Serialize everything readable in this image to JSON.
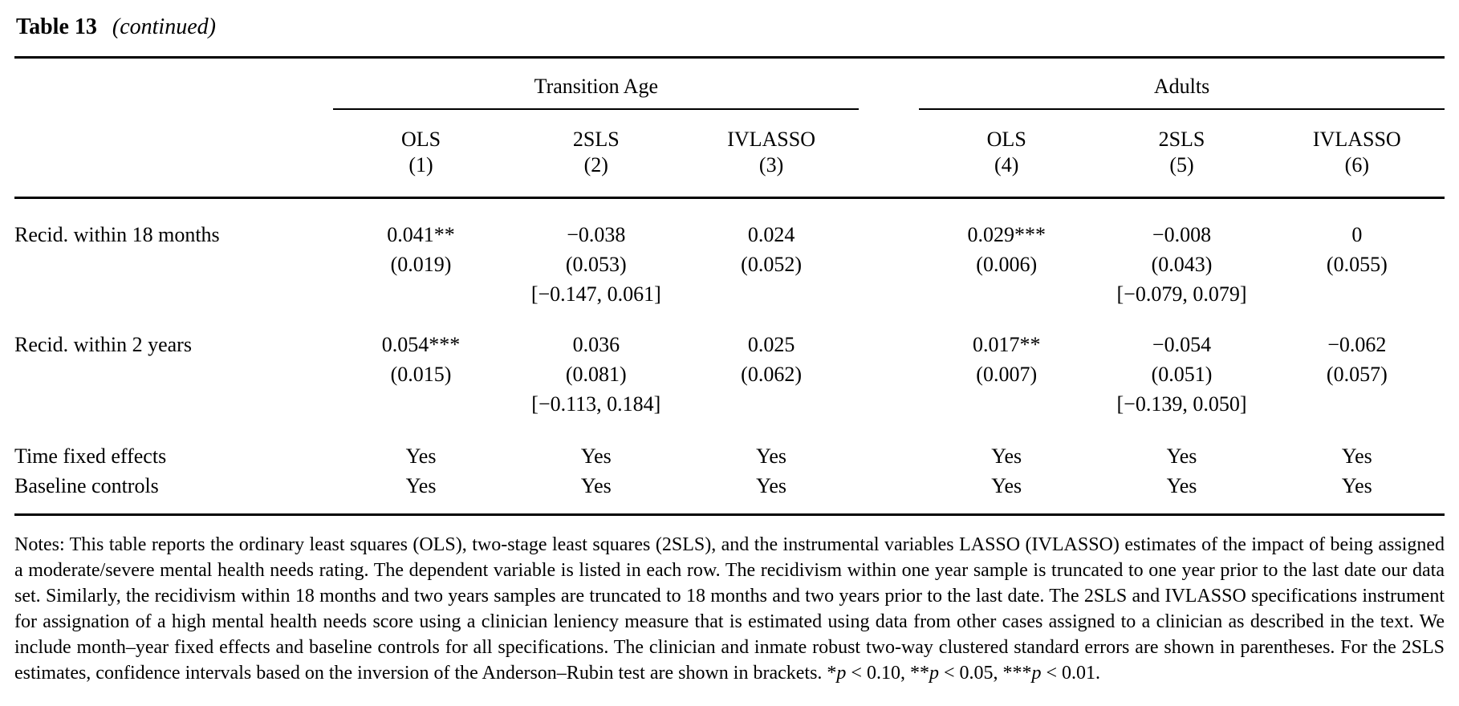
{
  "title": {
    "number": "Table 13",
    "continued": "(continued)"
  },
  "table": {
    "groups": [
      {
        "label": "Transition Age"
      },
      {
        "label": "Adults"
      }
    ],
    "columns": [
      {
        "method": "OLS",
        "number": "(1)"
      },
      {
        "method": "2SLS",
        "number": "(2)"
      },
      {
        "method": "IVLASSO",
        "number": "(3)"
      },
      {
        "method": "OLS",
        "number": "(4)"
      },
      {
        "method": "2SLS",
        "number": "(5)"
      },
      {
        "method": "IVLASSO",
        "number": "(6)"
      }
    ],
    "rows": [
      {
        "label": "Recid. within 18 months",
        "cells": [
          {
            "estimate": "0.041**",
            "se": "(0.019)",
            "ci": ""
          },
          {
            "estimate": "−0.038",
            "se": "(0.053)",
            "ci": "[−0.147, 0.061]"
          },
          {
            "estimate": "0.024",
            "se": "(0.052)",
            "ci": ""
          },
          {
            "estimate": "0.029***",
            "se": "(0.006)",
            "ci": ""
          },
          {
            "estimate": "−0.008",
            "se": "(0.043)",
            "ci": "[−0.079, 0.079]"
          },
          {
            "estimate": "0",
            "se": "(0.055)",
            "ci": ""
          }
        ]
      },
      {
        "label": "Recid. within 2 years",
        "cells": [
          {
            "estimate": "0.054***",
            "se": "(0.015)",
            "ci": ""
          },
          {
            "estimate": "0.036",
            "se": "(0.081)",
            "ci": "[−0.113, 0.184]"
          },
          {
            "estimate": "0.025",
            "se": "(0.062)",
            "ci": ""
          },
          {
            "estimate": "0.017**",
            "se": "(0.007)",
            "ci": ""
          },
          {
            "estimate": "−0.054",
            "se": "(0.051)",
            "ci": "[−0.139, 0.050]"
          },
          {
            "estimate": "−0.062",
            "se": "(0.057)",
            "ci": ""
          }
        ]
      }
    ],
    "spec_rows": [
      {
        "label": "Time fixed effects",
        "values": [
          "Yes",
          "Yes",
          "Yes",
          "Yes",
          "Yes",
          "Yes"
        ]
      },
      {
        "label": "Baseline controls",
        "values": [
          "Yes",
          "Yes",
          "Yes",
          "Yes",
          "Yes",
          "Yes"
        ]
      }
    ]
  },
  "notes": {
    "body": "Notes: This table reports the ordinary least squares (OLS), two-stage least squares (2SLS), and the instrumental variables LASSO (IVLASSO) estimates of the impact of being assigned a moderate/severe mental health needs rating. The dependent variable is listed in each row. The recidivism within one year sample is truncated to one year prior to the last date our data set. Similarly, the recidivism within 18 months and two years samples are truncated to 18 months and two years prior to the last date. The 2SLS and IVLASSO specifications instrument for assignation of a high mental health needs score using a clinician leniency measure that is estimated using data from other cases assigned to a clinician as described in the text. We include month–year fixed effects and baseline controls for all specifications. The clinician and inmate robust two-way clustered standard errors are shown in parentheses. For the 2SLS estimates, confidence intervals based on the inversion of the Anderson–Rubin test are shown in brackets. ",
    "sig1_stars": "*",
    "sig1_p": "p",
    "sig1_rest": " < 0.10, ",
    "sig2_stars": "**",
    "sig2_p": "p",
    "sig2_rest": " < 0.05, ",
    "sig3_stars": "***",
    "sig3_p": "p",
    "sig3_rest": " < 0.01."
  }
}
